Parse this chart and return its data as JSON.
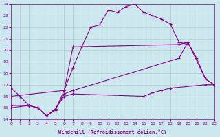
{
  "xlabel": "Windchill (Refroidissement éolien,°C)",
  "bg_color": "#cce8ee",
  "line_color": "#880088",
  "grid_color": "#aacccc",
  "xmin": 0,
  "xmax": 23,
  "ymin": 14,
  "ymax": 24,
  "curve1_x": [
    0,
    1,
    2,
    3,
    4,
    5,
    6,
    7,
    8,
    9,
    10,
    11,
    12,
    13,
    14,
    15,
    16,
    17,
    18,
    19,
    20
  ],
  "curve1_y": [
    16.7,
    16.0,
    15.2,
    15.0,
    14.3,
    14.8,
    16.5,
    18.5,
    20.3,
    22.0,
    22.2,
    23.5,
    23.3,
    23.8,
    24.0,
    23.3,
    23.0,
    22.7,
    22.3,
    20.7,
    20.5
  ],
  "curve2_x": [
    0,
    6,
    7,
    19,
    20,
    21,
    22,
    23
  ],
  "curve2_y": [
    16.0,
    16.5,
    20.3,
    20.5,
    20.7,
    19.3,
    17.5,
    17.0
  ],
  "curve3_x": [
    0,
    2,
    3,
    4,
    5,
    6,
    7,
    19,
    20,
    22,
    23
  ],
  "curve3_y": [
    15.2,
    15.2,
    15.0,
    14.3,
    14.9,
    16.2,
    16.5,
    19.3,
    20.7,
    17.5,
    17.0
  ],
  "curve4_x": [
    0,
    2,
    3,
    4,
    5,
    6,
    7,
    15,
    16,
    17,
    18,
    22,
    23
  ],
  "curve4_y": [
    15.0,
    15.2,
    15.0,
    14.3,
    14.9,
    16.0,
    16.2,
    16.0,
    16.3,
    16.5,
    16.7,
    17.0,
    17.0
  ]
}
